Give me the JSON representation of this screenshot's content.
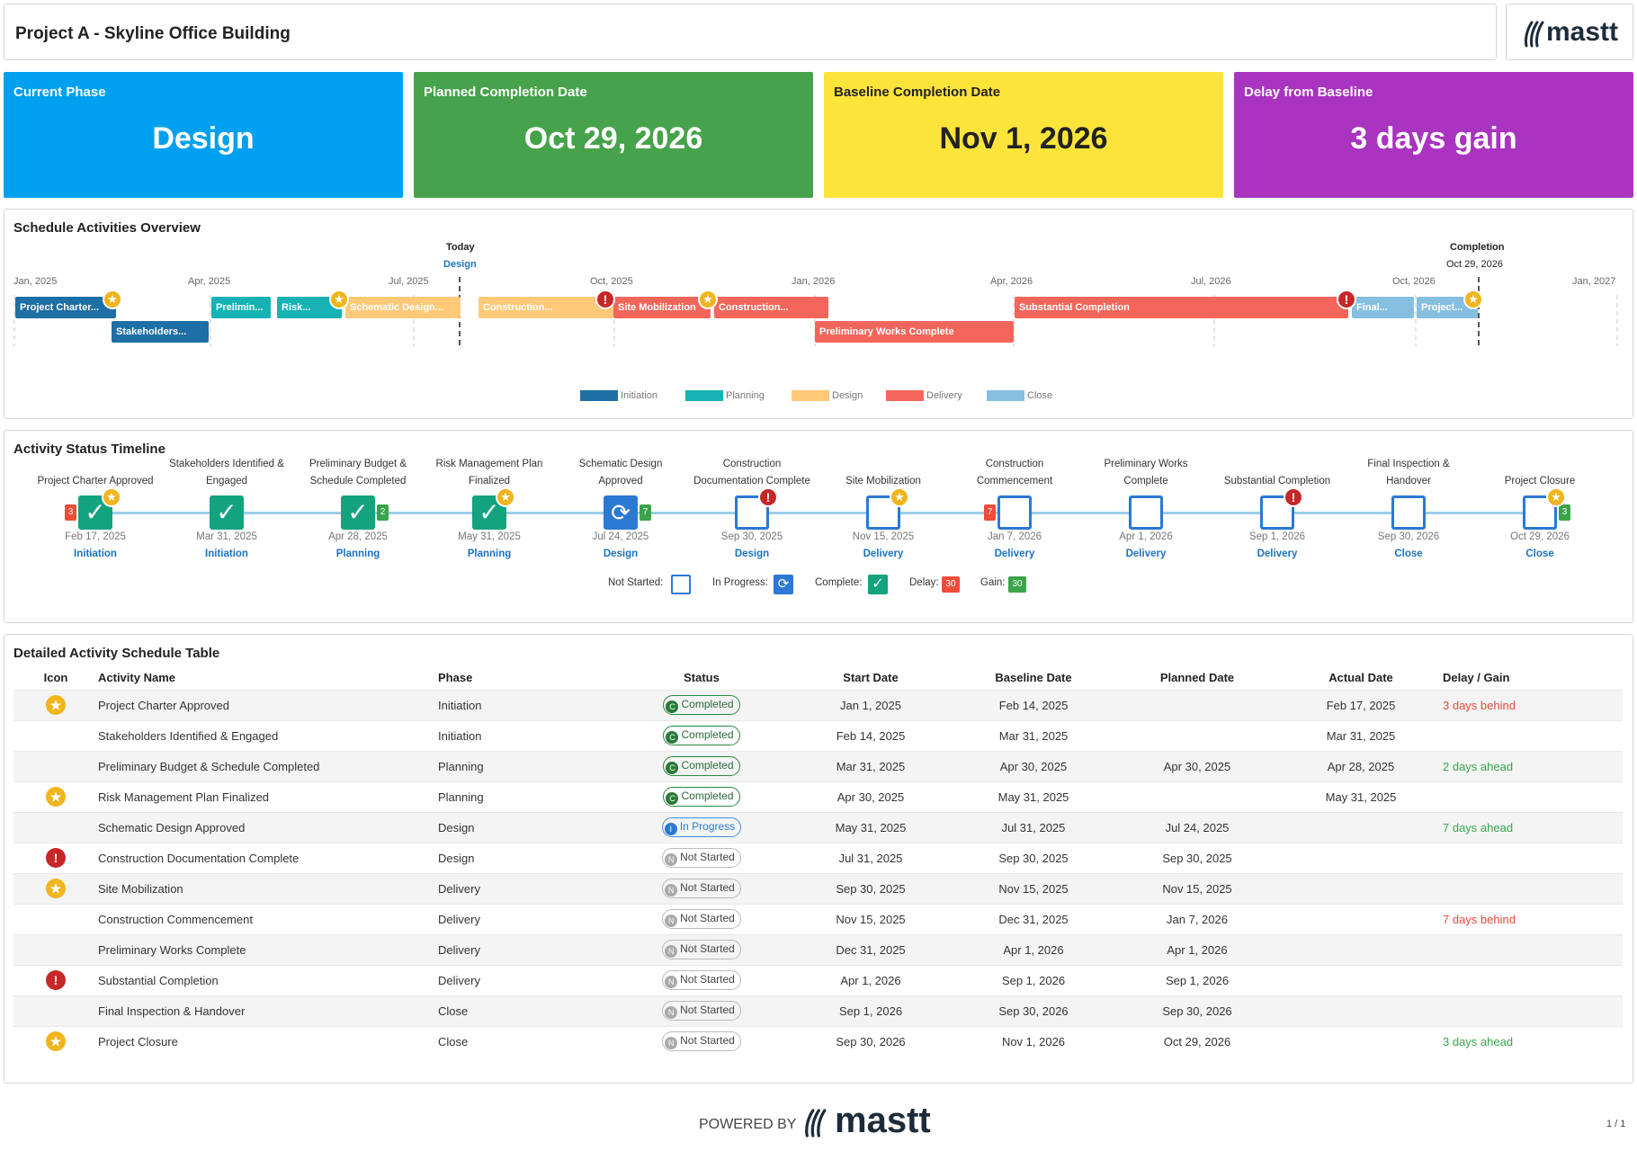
{
  "header": {
    "title": "Project A - Skyline Office Building",
    "logo": "mastt"
  },
  "kpis": [
    {
      "label": "Current Phase",
      "value": "Design",
      "color": "#00a0f0"
    },
    {
      "label": "Planned Completion Date",
      "value": "Oct 29, 2026",
      "color": "#46a34b"
    },
    {
      "label": "Baseline Completion Date",
      "value": "Nov 1, 2026",
      "color": "#fde43a"
    },
    {
      "label": "Delay from Baseline",
      "value": "3 days gain",
      "color": "#a934c0"
    }
  ],
  "overview": {
    "title": "Schedule Activities Overview",
    "today_label": "Today",
    "today_phase": "Design",
    "completion_label": "Completion",
    "completion_date": "Oct 29, 2026",
    "months": [
      "Jan, 2025",
      "Apr, 2025",
      "Jul, 2025",
      "Oct, 2025",
      "Jan, 2026",
      "Apr, 2026",
      "Jul, 2026",
      "Oct, 2026",
      "Jan, 2027"
    ],
    "bars": [
      {
        "label": "Project Charter...",
        "phase": "Initiation"
      },
      {
        "label": "Stakeholders...",
        "phase": "Initiation"
      },
      {
        "label": "Prelimin...",
        "phase": "Planning"
      },
      {
        "label": "Risk...",
        "phase": "Planning"
      },
      {
        "label": "Schematic Design...",
        "phase": "Design"
      },
      {
        "label": "Construction...",
        "phase": "Design"
      },
      {
        "label": "Site Mobilization",
        "phase": "Delivery"
      },
      {
        "label": "Construction...",
        "phase": "Delivery"
      },
      {
        "label": "Preliminary Works Complete",
        "phase": "Delivery"
      },
      {
        "label": "Substantial Completion",
        "phase": "Delivery"
      },
      {
        "label": "Final...",
        "phase": "Close"
      },
      {
        "label": "Project...",
        "phase": "Close"
      }
    ],
    "legend": [
      {
        "label": "Initiation",
        "color": "#1d6fa5"
      },
      {
        "label": "Planning",
        "color": "#17b2b3"
      },
      {
        "label": "Design",
        "color": "#ffc978"
      },
      {
        "label": "Delivery",
        "color": "#f4665c"
      },
      {
        "label": "Close",
        "color": "#86bfdf"
      }
    ]
  },
  "status_timeline": {
    "title": "Activity Status Timeline",
    "milestones": [
      {
        "name": "Project Charter Approved",
        "date": "Feb 17, 2025",
        "phase": "Initiation",
        "status": "done",
        "chip": "3"
      },
      {
        "name": "Stakeholders Identified & Engaged",
        "date": "Mar 31, 2025",
        "phase": "Initiation",
        "status": "done"
      },
      {
        "name": "Preliminary Budget & Schedule Completed",
        "date": "Apr 28, 2025",
        "phase": "Planning",
        "status": "done",
        "chip": "2"
      },
      {
        "name": "Risk Management Plan Finalized",
        "date": "May 31, 2025",
        "phase": "Planning",
        "status": "done"
      },
      {
        "name": "Schematic Design Approved",
        "date": "Jul 24, 2025",
        "phase": "Design",
        "status": "prog",
        "chip": "7"
      },
      {
        "name": "Construction Documentation Complete",
        "date": "Sep 30, 2025",
        "phase": "Design",
        "status": "ns"
      },
      {
        "name": "Site Mobilization",
        "date": "Nov 15, 2025",
        "phase": "Delivery",
        "status": "ns"
      },
      {
        "name": "Construction Commencement",
        "date": "Jan 7, 2026",
        "phase": "Delivery",
        "status": "ns",
        "chip": "7"
      },
      {
        "name": "Preliminary Works Complete",
        "date": "Apr 1, 2026",
        "phase": "Delivery",
        "status": "ns"
      },
      {
        "name": "Substantial Completion",
        "date": "Sep 1, 2026",
        "phase": "Delivery",
        "status": "ns"
      },
      {
        "name": "Final Inspection & Handover",
        "date": "Sep 30, 2026",
        "phase": "Close",
        "status": "ns"
      },
      {
        "name": "Project Closure",
        "date": "Oct 29, 2026",
        "phase": "Close",
        "status": "ns",
        "chip": "3"
      }
    ],
    "legend": {
      "not_started": "Not Started:",
      "in_progress": "In Progress:",
      "complete": "Complete:",
      "delay": "Delay:",
      "gain": "Gain:",
      "delay_value": "30",
      "gain_value": "30"
    }
  },
  "table": {
    "title": "Detailed Activity Schedule Table",
    "columns": [
      "Icon",
      "Activity Name",
      "Phase",
      "Status",
      "Start Date",
      "Baseline Date",
      "Planned Date",
      "Actual Date",
      "Delay / Gain"
    ],
    "rows": [
      {
        "icon": "star",
        "name": "Project Charter Approved",
        "phase": "Initiation",
        "status": "Completed",
        "start": "Jan 1, 2025",
        "baseline": "Feb 14, 2025",
        "planned": "",
        "actual": "Feb 17, 2025",
        "delay": "3 days behind"
      },
      {
        "icon": "",
        "name": "Stakeholders Identified & Engaged",
        "phase": "Initiation",
        "status": "Completed",
        "start": "Feb 14, 2025",
        "baseline": "Mar 31, 2025",
        "planned": "",
        "actual": "Mar 31, 2025",
        "delay": ""
      },
      {
        "icon": "",
        "name": "Preliminary Budget & Schedule Completed",
        "phase": "Planning",
        "status": "Completed",
        "start": "Mar 31, 2025",
        "baseline": "Apr 30, 2025",
        "planned": "Apr 30, 2025",
        "actual": "Apr 28, 2025",
        "delay": "2 days ahead"
      },
      {
        "icon": "star",
        "name": "Risk Management Plan Finalized",
        "phase": "Planning",
        "status": "Completed",
        "start": "Apr 30, 2025",
        "baseline": "May 31, 2025",
        "planned": "",
        "actual": "May 31, 2025",
        "delay": ""
      },
      {
        "icon": "",
        "name": "Schematic Design Approved",
        "phase": "Design",
        "status": "In Progress",
        "start": "May 31, 2025",
        "baseline": "Jul 31, 2025",
        "planned": "Jul 24, 2025",
        "actual": "",
        "delay": "7 days ahead"
      },
      {
        "icon": "alert",
        "name": "Construction Documentation Complete",
        "phase": "Design",
        "status": "Not Started",
        "start": "Jul 31, 2025",
        "baseline": "Sep 30, 2025",
        "planned": "Sep 30, 2025",
        "actual": "",
        "delay": ""
      },
      {
        "icon": "star",
        "name": "Site Mobilization",
        "phase": "Delivery",
        "status": "Not Started",
        "start": "Sep 30, 2025",
        "baseline": "Nov 15, 2025",
        "planned": "Nov 15, 2025",
        "actual": "",
        "delay": ""
      },
      {
        "icon": "",
        "name": "Construction Commencement",
        "phase": "Delivery",
        "status": "Not Started",
        "start": "Nov 15, 2025",
        "baseline": "Dec 31, 2025",
        "planned": "Jan 7, 2026",
        "actual": "",
        "delay": "7 days behind"
      },
      {
        "icon": "",
        "name": "Preliminary Works Complete",
        "phase": "Delivery",
        "status": "Not Started",
        "start": "Dec 31, 2025",
        "baseline": "Apr 1, 2026",
        "planned": "Apr 1, 2026",
        "actual": "",
        "delay": ""
      },
      {
        "icon": "alert",
        "name": "Substantial Completion",
        "phase": "Delivery",
        "status": "Not Started",
        "start": "Apr 1, 2026",
        "baseline": "Sep 1, 2026",
        "planned": "Sep 1, 2026",
        "actual": "",
        "delay": ""
      },
      {
        "icon": "",
        "name": "Final Inspection & Handover",
        "phase": "Close",
        "status": "Not Started",
        "start": "Sep 1, 2026",
        "baseline": "Sep 30, 2026",
        "planned": "Sep 30, 2026",
        "actual": "",
        "delay": ""
      },
      {
        "icon": "star",
        "name": "Project Closure",
        "phase": "Close",
        "status": "Not Started",
        "start": "Sep 30, 2026",
        "baseline": "Nov 1, 2026",
        "planned": "Oct 29, 2026",
        "actual": "",
        "delay": "3 days ahead"
      }
    ]
  },
  "footer": {
    "powered_by": "POWERED BY",
    "brand": "mastt",
    "page": "1 / 1"
  }
}
